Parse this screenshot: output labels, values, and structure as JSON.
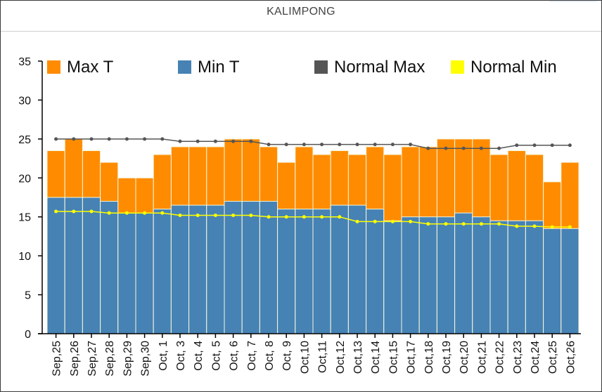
{
  "page": {
    "title": "KALIMPONG"
  },
  "colors": {
    "max_t": "#FF8C00",
    "min_t": "#4682B4",
    "normal_max": "#555555",
    "normal_min": "#FFFF00",
    "axis": "#000000",
    "bar_separator": "#F5F5DC"
  },
  "chart_data": {
    "type": "bar",
    "title": "KALIMPONG",
    "xlabel": "",
    "ylabel": "",
    "ylim": [
      0,
      35
    ],
    "yticks": [
      0,
      5,
      10,
      15,
      20,
      25,
      30,
      35
    ],
    "grid": false,
    "legend_position": "top",
    "legend": [
      {
        "label": "Max T",
        "color": "#FF8C00",
        "kind": "bar"
      },
      {
        "label": "Min T",
        "color": "#4682B4",
        "kind": "bar"
      },
      {
        "label": "Normal Max",
        "color": "#555555",
        "kind": "line"
      },
      {
        "label": "Normal Min",
        "color": "#FFFF00",
        "kind": "line"
      }
    ],
    "categories": [
      "Sep,25",
      "Sep,26",
      "Sep,27",
      "Sep,28",
      "Sep,29",
      "Sep,30",
      "Oct, 1",
      "Oct, 3",
      "Oct, 4",
      "Oct, 5",
      "Oct, 6",
      "Oct, 7",
      "Oct, 8",
      "Oct, 9",
      "Oct,10",
      "Oct,11",
      "Oct,12",
      "Oct,13",
      "Oct,14",
      "Oct,15",
      "Oct,17",
      "Oct,18",
      "Oct,19",
      "Oct,20",
      "Oct,21",
      "Oct,22",
      "Oct,23",
      "Oct,24",
      "Oct,25",
      "Oct,26"
    ],
    "series": [
      {
        "name": "Max T",
        "type": "bar",
        "color": "#FF8C00",
        "values": [
          23.5,
          25,
          23.5,
          22,
          20,
          20,
          23,
          24,
          24,
          24,
          25,
          25,
          24,
          22,
          24,
          23,
          23.5,
          23,
          24,
          23,
          24,
          24,
          25,
          25,
          25,
          23,
          23.5,
          23,
          19.5,
          22
        ]
      },
      {
        "name": "Min T",
        "type": "bar",
        "color": "#4682B4",
        "values": [
          17.5,
          17.5,
          17.5,
          17,
          15.5,
          15.5,
          16,
          16.5,
          16.5,
          16.5,
          17,
          17,
          17,
          16,
          16,
          16,
          16.5,
          16.5,
          16,
          14.5,
          15,
          15,
          15,
          15.5,
          15,
          14.5,
          14.5,
          14.5,
          13.5,
          13.5
        ]
      },
      {
        "name": "Normal Max",
        "type": "line",
        "color": "#555555",
        "values": [
          25,
          25,
          25,
          25,
          25,
          25,
          25,
          24.7,
          24.7,
          24.7,
          24.7,
          24.7,
          24.3,
          24.3,
          24.3,
          24.3,
          24.3,
          24.3,
          24.3,
          24.3,
          24.3,
          23.8,
          23.8,
          23.8,
          23.8,
          23.8,
          24.2,
          24.2,
          24.2,
          24.2
        ]
      },
      {
        "name": "Normal Min",
        "type": "line",
        "color": "#FFFF00",
        "values": [
          15.7,
          15.7,
          15.7,
          15.5,
          15.5,
          15.5,
          15.5,
          15.2,
          15.2,
          15.2,
          15.2,
          15.2,
          15,
          15,
          15,
          15,
          15,
          14.4,
          14.4,
          14.4,
          14.4,
          14.1,
          14.1,
          14.1,
          14.1,
          14.1,
          13.8,
          13.8,
          13.7,
          13.7
        ]
      }
    ]
  }
}
